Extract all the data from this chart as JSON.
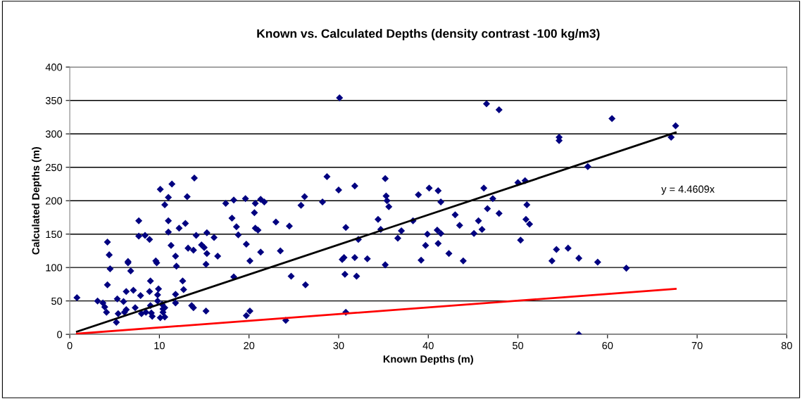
{
  "chart_data": {
    "type": "scatter",
    "title": "Known vs. Calculated Depths (density contrast -100 kg/m3)",
    "xlabel": "Known Depths (m)",
    "ylabel": "Calculated Depths (m)",
    "xlim": [
      0,
      80
    ],
    "xticks": [
      0,
      10,
      20,
      30,
      40,
      50,
      60,
      70,
      80
    ],
    "ylim": [
      0,
      400
    ],
    "yticks": [
      0,
      50,
      100,
      150,
      200,
      250,
      300,
      350,
      400
    ],
    "grid": "y",
    "annotations": [
      "y = 4.4609x"
    ],
    "series": [
      {
        "marker": "diamond",
        "color": "#000080",
        "x": [
          0.8,
          3.1,
          3.7,
          3.9,
          4.1,
          4.2,
          4.4,
          4.5,
          4.2,
          5.2,
          5.3,
          5.4,
          6.0,
          6.3,
          6.1,
          6.3,
          6.5,
          6.5,
          6.8,
          7.1,
          7.3,
          7.7,
          7.7,
          7.9,
          8.0,
          8.4,
          8.5,
          8.9,
          8.9,
          9.0,
          9.0,
          9.1,
          9.2,
          9.6,
          9.7,
          9.8,
          9.9,
          9.8,
          10.1,
          10.1,
          10.3,
          10.4,
          10.4,
          10.6,
          10.6,
          10.6,
          11.0,
          11.0,
          11.0,
          11.3,
          11.4,
          11.8,
          11.8,
          11.8,
          11.9,
          12.2,
          12.6,
          12.7,
          12.9,
          13.1,
          13.2,
          13.6,
          13.8,
          13.8,
          13.9,
          14.1,
          14.7,
          15.0,
          15.2,
          15.3,
          15.2,
          15.3,
          16.1,
          16.5,
          17.4,
          18.3,
          18.1,
          18.3,
          18.6,
          18.8,
          19.6,
          19.7,
          20.1,
          19.7,
          20.1,
          20.6,
          20.7,
          20.7,
          21.0,
          21.3,
          21.7,
          21.3,
          23.0,
          23.5,
          24.1,
          24.5,
          24.7,
          25.8,
          26.2,
          26.3,
          28.2,
          28.7,
          30.0,
          30.8,
          30.4,
          30.6,
          30.7,
          30.8,
          31.8,
          31.8,
          32.0,
          32.2,
          33.2,
          34.4,
          34.7,
          35.2,
          35.3,
          35.4,
          35.6,
          35.2,
          36.6,
          37.0,
          30.1,
          38.3,
          38.9,
          39.2,
          39.7,
          39.9,
          40.1,
          41.0,
          41.1,
          41.4,
          41.1,
          41.4,
          42.3,
          43.0,
          43.5,
          43.9,
          45.1,
          45.6,
          46.0,
          46.2,
          46.6,
          46.5,
          47.2,
          47.9,
          47.9,
          50.0,
          50.3,
          50.8,
          51.0,
          50.9,
          51.3,
          53.8,
          54.3,
          54.6,
          54.6,
          55.6,
          56.8,
          56.8,
          60.5,
          67.6,
          67.1,
          57.8,
          58.9,
          62.1
        ],
        "values": [
          55,
          50,
          47,
          41,
          33,
          138,
          119,
          98,
          74,
          18,
          53,
          31,
          49,
          64,
          33,
          37,
          109,
          107,
          95,
          66,
          40,
          170,
          147,
          58,
          31,
          148,
          33,
          142,
          64,
          80,
          43,
          32,
          27,
          110,
          107,
          59,
          68,
          50,
          217,
          25,
          45,
          38,
          33,
          26,
          194,
          40,
          205,
          170,
          153,
          133,
          225,
          117,
          60,
          47,
          102,
          159,
          80,
          67,
          166,
          206,
          129,
          43,
          40,
          126,
          234,
          148,
          134,
          130,
          35,
          152,
          105,
          121,
          145,
          117,
          196,
          201,
          174,
          86,
          161,
          149,
          203,
          135,
          110,
          28,
          35,
          182,
          196,
          159,
          156,
          202,
          198,
          123,
          168,
          125,
          21,
          162,
          87,
          193,
          206,
          74,
          198,
          236,
          216,
          160,
          112,
          115,
          90,
          33,
          222,
          115,
          87,
          142,
          113,
          172,
          157,
          233,
          207,
          200,
          191,
          104,
          144,
          155,
          354,
          170,
          209,
          111,
          133,
          150,
          219,
          156,
          215,
          151,
          136,
          198,
          121,
          179,
          163,
          110,
          151,
          170,
          157,
          219,
          188,
          345,
          203,
          336,
          181,
          227,
          141,
          230,
          194,
          172,
          165,
          110,
          127,
          295,
          290,
          129,
          114,
          0,
          323,
          312,
          295,
          251,
          108,
          99
        ]
      },
      {
        "type": "line",
        "color": "#000000",
        "x": [
          0.8,
          67.6
        ],
        "values": [
          4,
          302
        ],
        "marker": "none"
      },
      {
        "type": "line",
        "color": "#ff0000",
        "x": [
          0.8,
          67.6
        ],
        "values": [
          1,
          68
        ],
        "marker": "none"
      }
    ]
  }
}
